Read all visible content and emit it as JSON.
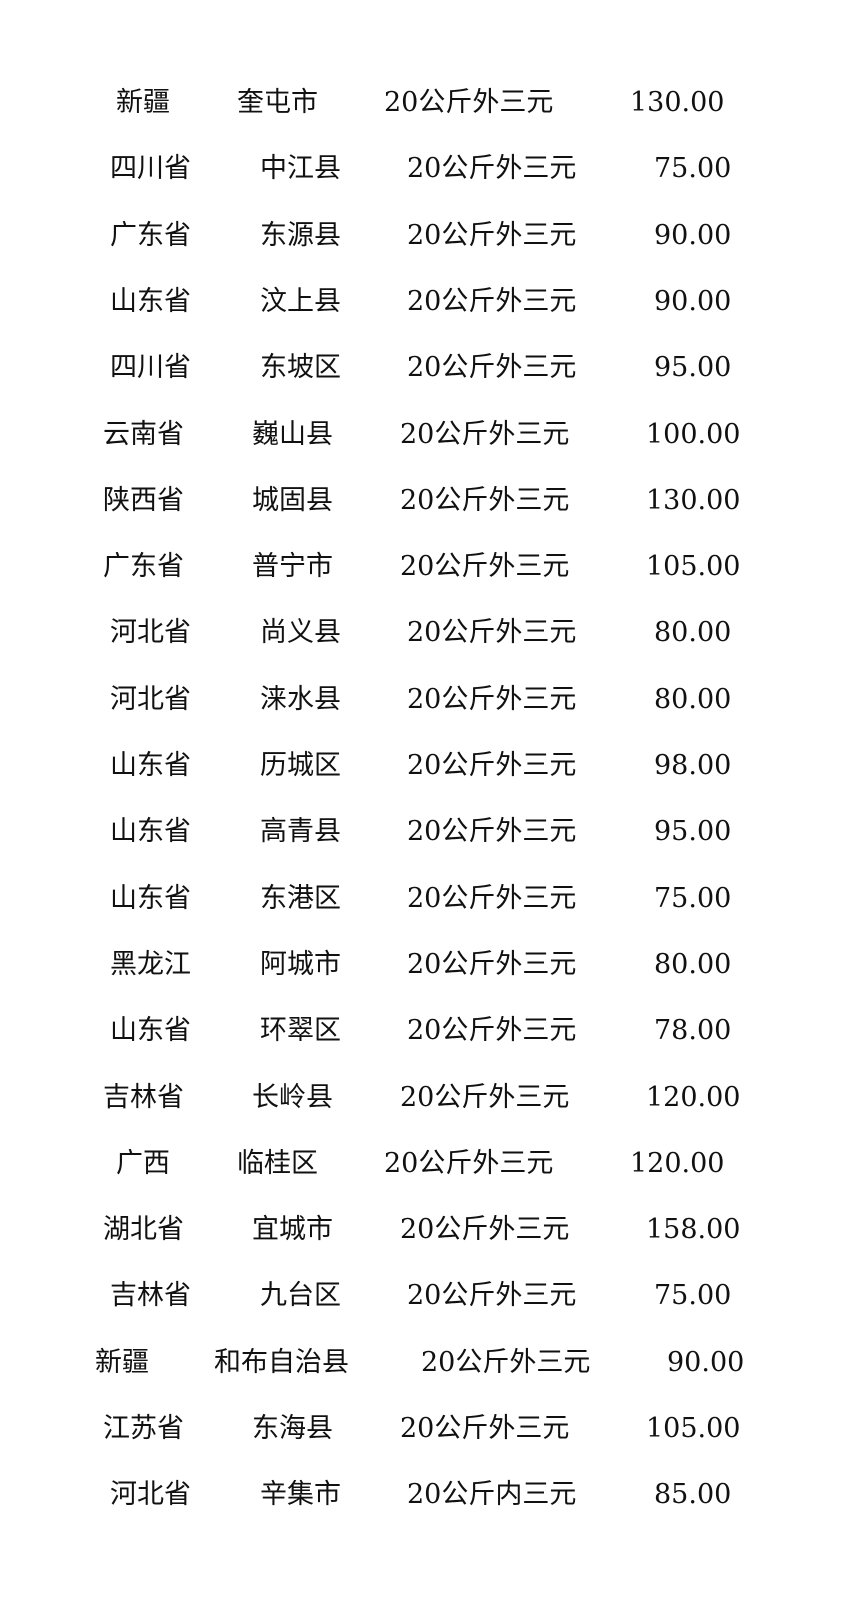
{
  "rows": [
    {
      "province": "新疆",
      "city": "奎屯市",
      "rule": "20公斤外三元",
      "price": "130.00"
    },
    {
      "province": "四川省",
      "city": "中江县",
      "rule": "20公斤外三元",
      "price": "75.00"
    },
    {
      "province": "广东省",
      "city": "东源县",
      "rule": "20公斤外三元",
      "price": "90.00"
    },
    {
      "province": "山东省",
      "city": "汶上县",
      "rule": "20公斤外三元",
      "price": "90.00"
    },
    {
      "province": "四川省",
      "city": "东坡区",
      "rule": "20公斤外三元",
      "price": "95.00"
    },
    {
      "province": "云南省",
      "city": "巍山县",
      "rule": "20公斤外三元",
      "price": "100.00"
    },
    {
      "province": "陕西省",
      "city": "城固县",
      "rule": "20公斤外三元",
      "price": "130.00"
    },
    {
      "province": "广东省",
      "city": "普宁市",
      "rule": "20公斤外三元",
      "price": "105.00"
    },
    {
      "province": "河北省",
      "city": "尚义县",
      "rule": "20公斤外三元",
      "price": "80.00"
    },
    {
      "province": "河北省",
      "city": "涞水县",
      "rule": "20公斤外三元",
      "price": "80.00"
    },
    {
      "province": "山东省",
      "city": "历城区",
      "rule": "20公斤外三元",
      "price": "98.00"
    },
    {
      "province": "山东省",
      "city": "高青县",
      "rule": "20公斤外三元",
      "price": "95.00"
    },
    {
      "province": "山东省",
      "city": "东港区",
      "rule": "20公斤外三元",
      "price": "75.00"
    },
    {
      "province": "黑龙江",
      "city": "阿城市",
      "rule": "20公斤外三元",
      "price": "80.00"
    },
    {
      "province": "山东省",
      "city": "环翠区",
      "rule": "20公斤外三元",
      "price": "78.00"
    },
    {
      "province": "吉林省",
      "city": "长岭县",
      "rule": "20公斤外三元",
      "price": "120.00"
    },
    {
      "province": "广西",
      "city": "临桂区",
      "rule": "20公斤外三元",
      "price": "120.00"
    },
    {
      "province": "湖北省",
      "city": "宜城市",
      "rule": "20公斤外三元",
      "price": "158.00"
    },
    {
      "province": "吉林省",
      "city": "九台区",
      "rule": "20公斤外三元",
      "price": "75.00"
    },
    {
      "province": "新疆",
      "city": "和布自治县",
      "rule": "20公斤外三元",
      "price": "90.00"
    },
    {
      "province": "江苏省",
      "city": "东海县",
      "rule": "20公斤外三元",
      "price": "105.00"
    },
    {
      "province": "河北省",
      "city": "辛集市",
      "rule": "20公斤内三元",
      "price": "85.00"
    }
  ]
}
